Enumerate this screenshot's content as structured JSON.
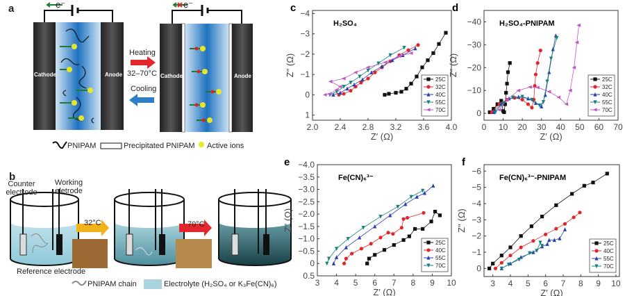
{
  "panel_a": {
    "label": "a",
    "electron": "e⁻",
    "cathode": "Cathode",
    "anode": "Anode",
    "heating": "Heating",
    "temp_range": "32–70°C",
    "cooling": "Cooling",
    "legend": [
      "PNIPAM",
      "Precipitated PNIPAM",
      "Active ions"
    ]
  },
  "panel_b": {
    "label": "b",
    "counter": "Counter electrode",
    "working": "Working eletrode",
    "reference": "Reference electrode",
    "step1": "32°C",
    "step2": "70°C",
    "legend_chain": "PNIPAM chain",
    "legend_electrolyte": "Electrolyte (H₂SO₄ or K₃Fe(CN)₆)"
  },
  "colors": {
    "25C": "#111111",
    "32C": "#e0262b",
    "40C": "#2a3fae",
    "55C": "#17807c",
    "70C": "#c257c4"
  },
  "chart_data": [
    {
      "panel": "c",
      "type": "scatter",
      "title": "H₂SO₄",
      "xlabel": "Z′ (Ω)",
      "ylabel": "Z″ (Ω)",
      "xlim": [
        2.0,
        4.0
      ],
      "ylim": [
        -4.15,
        1.25
      ],
      "xticks": [
        2.0,
        2.4,
        2.8,
        3.2,
        3.6,
        4.0
      ],
      "xtick_labels": [
        "2.0",
        "2.4",
        "2.8",
        "3.2",
        "3.6",
        "4.0"
      ],
      "yticks": [
        -4,
        -3,
        -2,
        -1,
        0,
        1
      ],
      "ytick_labels": [
        "−4",
        "−3",
        "−2",
        "−1",
        "0",
        "1"
      ],
      "legend_position": "bottom-right",
      "series": [
        {
          "name": "25C",
          "color_key": "25C",
          "marker": "square",
          "points": [
            [
              3.04,
              0
            ],
            [
              3.1,
              -0.05
            ],
            [
              3.2,
              -0.1
            ],
            [
              3.28,
              -0.15
            ],
            [
              3.35,
              -0.3
            ],
            [
              3.42,
              -0.55
            ],
            [
              3.5,
              -0.9
            ],
            [
              3.58,
              -1.35
            ],
            [
              3.66,
              -1.7
            ],
            [
              3.74,
              -2.05
            ],
            [
              3.82,
              -2.5
            ],
            [
              3.92,
              -3.05
            ]
          ]
        },
        {
          "name": "32C",
          "color_key": "32C",
          "marker": "circle",
          "points": [
            [
              2.38,
              0
            ],
            [
              2.45,
              -0.05
            ],
            [
              2.55,
              -0.2
            ],
            [
              2.62,
              -0.4
            ],
            [
              2.7,
              -0.6
            ],
            [
              2.8,
              -0.8
            ],
            [
              2.9,
              -1.1
            ],
            [
              3.0,
              -1.35
            ],
            [
              3.12,
              -1.65
            ],
            [
              3.25,
              -1.95
            ],
            [
              3.38,
              -2.2
            ],
            [
              3.52,
              -2.45
            ]
          ]
        },
        {
          "name": "40C",
          "color_key": "40C",
          "marker": "up",
          "points": [
            [
              2.3,
              0
            ],
            [
              2.4,
              -0.1
            ],
            [
              2.5,
              -0.3
            ],
            [
              2.6,
              -0.5
            ],
            [
              2.72,
              -0.75
            ],
            [
              2.85,
              -1.1
            ],
            [
              3.0,
              -1.4
            ],
            [
              3.15,
              -1.7
            ],
            [
              3.3,
              -1.95
            ],
            [
              3.48,
              -2.28
            ]
          ]
        },
        {
          "name": "55C",
          "color_key": "55C",
          "marker": "down",
          "points": [
            [
              2.25,
              0
            ],
            [
              2.35,
              -0.15
            ],
            [
              2.45,
              -0.4
            ],
            [
              2.55,
              -0.6
            ],
            [
              2.68,
              -0.9
            ],
            [
              2.8,
              -1.2
            ],
            [
              2.95,
              -1.55
            ],
            [
              3.12,
              -1.95
            ],
            [
              3.32,
              -2.32
            ]
          ]
        },
        {
          "name": "70C",
          "color_key": "70C",
          "marker": "left",
          "points": [
            [
              2.18,
              0
            ],
            [
              2.25,
              -0.05
            ],
            [
              2.35,
              -0.25
            ],
            [
              2.4,
              -0.4
            ],
            [
              2.26,
              -0.65
            ],
            [
              2.45,
              -0.8
            ],
            [
              2.62,
              -1.1
            ],
            [
              2.8,
              -1.35
            ],
            [
              3.05,
              -1.6
            ],
            [
              3.25,
              -1.9
            ],
            [
              3.42,
              -2.05
            ]
          ]
        }
      ]
    },
    {
      "panel": "d",
      "type": "scatter",
      "title": "H₂SO₄-PNIPAM",
      "xlabel": "Z′ (Ω)",
      "ylabel": "Z″ (Ω)",
      "xlim": [
        0,
        70
      ],
      "ylim": [
        -45,
        3
      ],
      "xticks": [
        0,
        10,
        20,
        30,
        40,
        50,
        60,
        70
      ],
      "xtick_labels": [
        "0",
        "10",
        "20",
        "30",
        "40",
        "50",
        "60",
        "70"
      ],
      "yticks": [
        -40,
        -30,
        -20,
        -10,
        0
      ],
      "ytick_labels": [
        "−40",
        "−30",
        "−20",
        "−10",
        "0"
      ],
      "legend_position": "bottom-right",
      "series": [
        {
          "name": "25C",
          "color_key": "25C",
          "marker": "square",
          "points": [
            [
              3,
              -0.5
            ],
            [
              5,
              -2
            ],
            [
              7,
              -4
            ],
            [
              9,
              -5.5
            ],
            [
              10,
              -1
            ],
            [
              10.5,
              -0.5
            ],
            [
              11,
              -4
            ],
            [
              11.5,
              -9
            ],
            [
              12,
              -13
            ],
            [
              12.5,
              -18
            ],
            [
              13.5,
              -22
            ]
          ]
        },
        {
          "name": "32C",
          "color_key": "32C",
          "marker": "circle",
          "points": [
            [
              4,
              -0.5
            ],
            [
              8,
              -4
            ],
            [
              12,
              -6
            ],
            [
              16,
              -6.8
            ],
            [
              20,
              -6
            ],
            [
              23,
              -4
            ],
            [
              25,
              -2.5
            ],
            [
              26,
              -6
            ],
            [
              26.5,
              -12
            ],
            [
              27,
              -17
            ],
            [
              28,
              -22
            ],
            [
              29.5,
              -27.5
            ]
          ]
        },
        {
          "name": "40C",
          "color_key": "40C",
          "marker": "up",
          "points": [
            [
              5,
              -0.5
            ],
            [
              9,
              -4
            ],
            [
              13,
              -6.5
            ],
            [
              18,
              -7.2
            ],
            [
              23,
              -6.5
            ],
            [
              27,
              -4.5
            ],
            [
              30,
              -3
            ],
            [
              32,
              -8
            ],
            [
              34,
              -18
            ],
            [
              36,
              -28
            ],
            [
              37.5,
              -34
            ]
          ]
        },
        {
          "name": "55C",
          "color_key": "55C",
          "marker": "down",
          "points": [
            [
              6,
              -0.5
            ],
            [
              10,
              -4.5
            ],
            [
              15,
              -7
            ],
            [
              20,
              -7.3
            ],
            [
              25,
              -6
            ],
            [
              29,
              -3.5
            ],
            [
              31,
              -5
            ],
            [
              33,
              -14
            ],
            [
              35,
              -24
            ],
            [
              38,
              -33
            ]
          ]
        },
        {
          "name": "70C",
          "color_key": "70C",
          "marker": "left",
          "points": [
            [
              8,
              -1.5
            ],
            [
              12,
              -6
            ],
            [
              18,
              -10
            ],
            [
              24,
              -11.5
            ],
            [
              28,
              -11.3
            ],
            [
              34,
              -9.5
            ],
            [
              39,
              -7
            ],
            [
              43,
              -4
            ],
            [
              45,
              -10
            ],
            [
              47,
              -20
            ],
            [
              48.5,
              -31
            ],
            [
              49.5,
              -38.5
            ]
          ]
        }
      ]
    },
    {
      "panel": "e",
      "type": "scatter",
      "title": "Fe(CN)₆³⁻",
      "xlabel": "Z′ (Ω)",
      "ylabel": "Z″ (Ω)",
      "xlim": [
        3,
        10
      ],
      "ylim": [
        -4.0,
        0.5
      ],
      "xticks": [
        3,
        4,
        5,
        6,
        7,
        8,
        9,
        10
      ],
      "xtick_labels": [
        "3",
        "4",
        "5",
        "6",
        "7",
        "8",
        "9",
        "10"
      ],
      "yticks": [
        -4,
        -3.5,
        -3,
        -2.5,
        -2,
        -1.5,
        -1,
        -0.5,
        0,
        0.5
      ],
      "ytick_labels": [
        "−4.0",
        "−3.5",
        "−3.0",
        "−2.5",
        "−2.0",
        "−1.5",
        "−1.0",
        "−0.5",
        "0",
        "0.5"
      ],
      "legend_position": "bottom-right",
      "series": [
        {
          "name": "25C",
          "color_key": "25C",
          "marker": "square",
          "points": [
            [
              5.6,
              0
            ],
            [
              5.7,
              -0.2
            ],
            [
              6.0,
              -0.35
            ],
            [
              6.5,
              -0.55
            ],
            [
              7.0,
              -0.75
            ],
            [
              7.5,
              -0.95
            ],
            [
              7.8,
              -1.1
            ],
            [
              8.1,
              -1.4
            ],
            [
              8.5,
              -1.4
            ],
            [
              8.95,
              -1.7
            ],
            [
              9.15,
              -2.1
            ],
            [
              9.4,
              -1.95
            ]
          ]
        },
        {
          "name": "40C",
          "color_key": "32C",
          "marker": "circle",
          "points": [
            [
              4.4,
              0
            ],
            [
              4.5,
              -0.2
            ],
            [
              4.8,
              -0.4
            ],
            [
              5.3,
              -0.6
            ],
            [
              5.8,
              -0.8
            ],
            [
              6.3,
              -1.05
            ],
            [
              6.7,
              -1.25
            ],
            [
              6.95,
              -1.2
            ],
            [
              7.4,
              -1.45
            ],
            [
              7.5,
              -1.8
            ],
            [
              7.7,
              -1.85
            ],
            [
              8.55,
              -2.05
            ]
          ]
        },
        {
          "name": "55C",
          "color_key": "40C",
          "marker": "up",
          "points": [
            [
              3.85,
              0
            ],
            [
              4.0,
              -0.25
            ],
            [
              4.5,
              -0.65
            ],
            [
              5.2,
              -1.05
            ],
            [
              6.0,
              -1.5
            ],
            [
              6.8,
              -1.95
            ],
            [
              7.6,
              -2.4
            ],
            [
              8.2,
              -2.7
            ],
            [
              8.6,
              -2.85
            ],
            [
              9.05,
              -3.15
            ]
          ]
        },
        {
          "name": "70C",
          "color_key": "55C",
          "marker": "down",
          "points": [
            [
              3.5,
              0
            ],
            [
              3.6,
              -0.2
            ],
            [
              4.0,
              -0.6
            ],
            [
              4.6,
              -1.0
            ],
            [
              5.4,
              -1.45
            ],
            [
              6.3,
              -1.9
            ],
            [
              7.2,
              -2.3
            ],
            [
              7.9,
              -2.7
            ],
            [
              8.5,
              -2.95
            ]
          ]
        }
      ]
    },
    {
      "panel": "f",
      "type": "scatter",
      "title": "Fe(CN)₆³⁻-PNIPAM",
      "xlabel": "Z′ (Ω)",
      "ylabel": "Z″ (Ω)",
      "xlim": [
        2.5,
        10.2
      ],
      "ylim": [
        -6.4,
        0.5
      ],
      "xticks": [
        3,
        4,
        5,
        6,
        7,
        8,
        9,
        10
      ],
      "xtick_labels": [
        "3",
        "4",
        "5",
        "6",
        "7",
        "8",
        "9",
        "10"
      ],
      "yticks": [
        -6,
        -5,
        -4,
        -3,
        -2,
        -1,
        0
      ],
      "ytick_labels": [
        "−6",
        "−5",
        "−4",
        "−3",
        "−2",
        "−1",
        "0"
      ],
      "legend_position": "bottom-right",
      "series": [
        {
          "name": "25C",
          "color_key": "25C",
          "marker": "square",
          "points": [
            [
              2.8,
              0
            ],
            [
              3.0,
              -0.3
            ],
            [
              3.5,
              -0.8
            ],
            [
              4.0,
              -1.3
            ],
            [
              4.6,
              -2.0
            ],
            [
              5.2,
              -2.6
            ],
            [
              5.8,
              -3.2
            ],
            [
              6.6,
              -3.9
            ],
            [
              7.5,
              -4.6
            ],
            [
              8.2,
              -5.1
            ],
            [
              8.7,
              -5.3
            ],
            [
              9.5,
              -5.85
            ]
          ]
        },
        {
          "name": "40C",
          "color_key": "32C",
          "marker": "circle",
          "points": [
            [
              3.15,
              0
            ],
            [
              3.5,
              -0.35
            ],
            [
              4.0,
              -0.8
            ],
            [
              4.6,
              -1.3
            ],
            [
              5.3,
              -1.7
            ],
            [
              6.0,
              -2.1
            ],
            [
              6.6,
              -2.45
            ],
            [
              7.1,
              -2.75
            ],
            [
              7.6,
              -3.15
            ],
            [
              7.95,
              -3.45
            ]
          ]
        },
        {
          "name": "55C",
          "color_key": "40C",
          "marker": "up",
          "points": [
            [
              3.5,
              0
            ],
            [
              4.0,
              -0.3
            ],
            [
              4.6,
              -0.7
            ],
            [
              5.3,
              -1.0
            ],
            [
              5.8,
              -1.35
            ],
            [
              6.1,
              -1.5
            ],
            [
              6.2,
              -1.75
            ],
            [
              6.5,
              -1.75
            ],
            [
              6.8,
              -1.85
            ],
            [
              7.1,
              -2.4
            ]
          ]
        },
        {
          "name": "70C",
          "color_key": "55C",
          "marker": "down",
          "points": [
            [
              3.5,
              0
            ],
            [
              3.9,
              -0.25
            ],
            [
              4.5,
              -0.55
            ],
            [
              5.1,
              -0.95
            ],
            [
              5.5,
              -1.1
            ],
            [
              5.7,
              -1.6
            ],
            [
              5.8,
              -1.4
            ]
          ]
        }
      ]
    }
  ]
}
